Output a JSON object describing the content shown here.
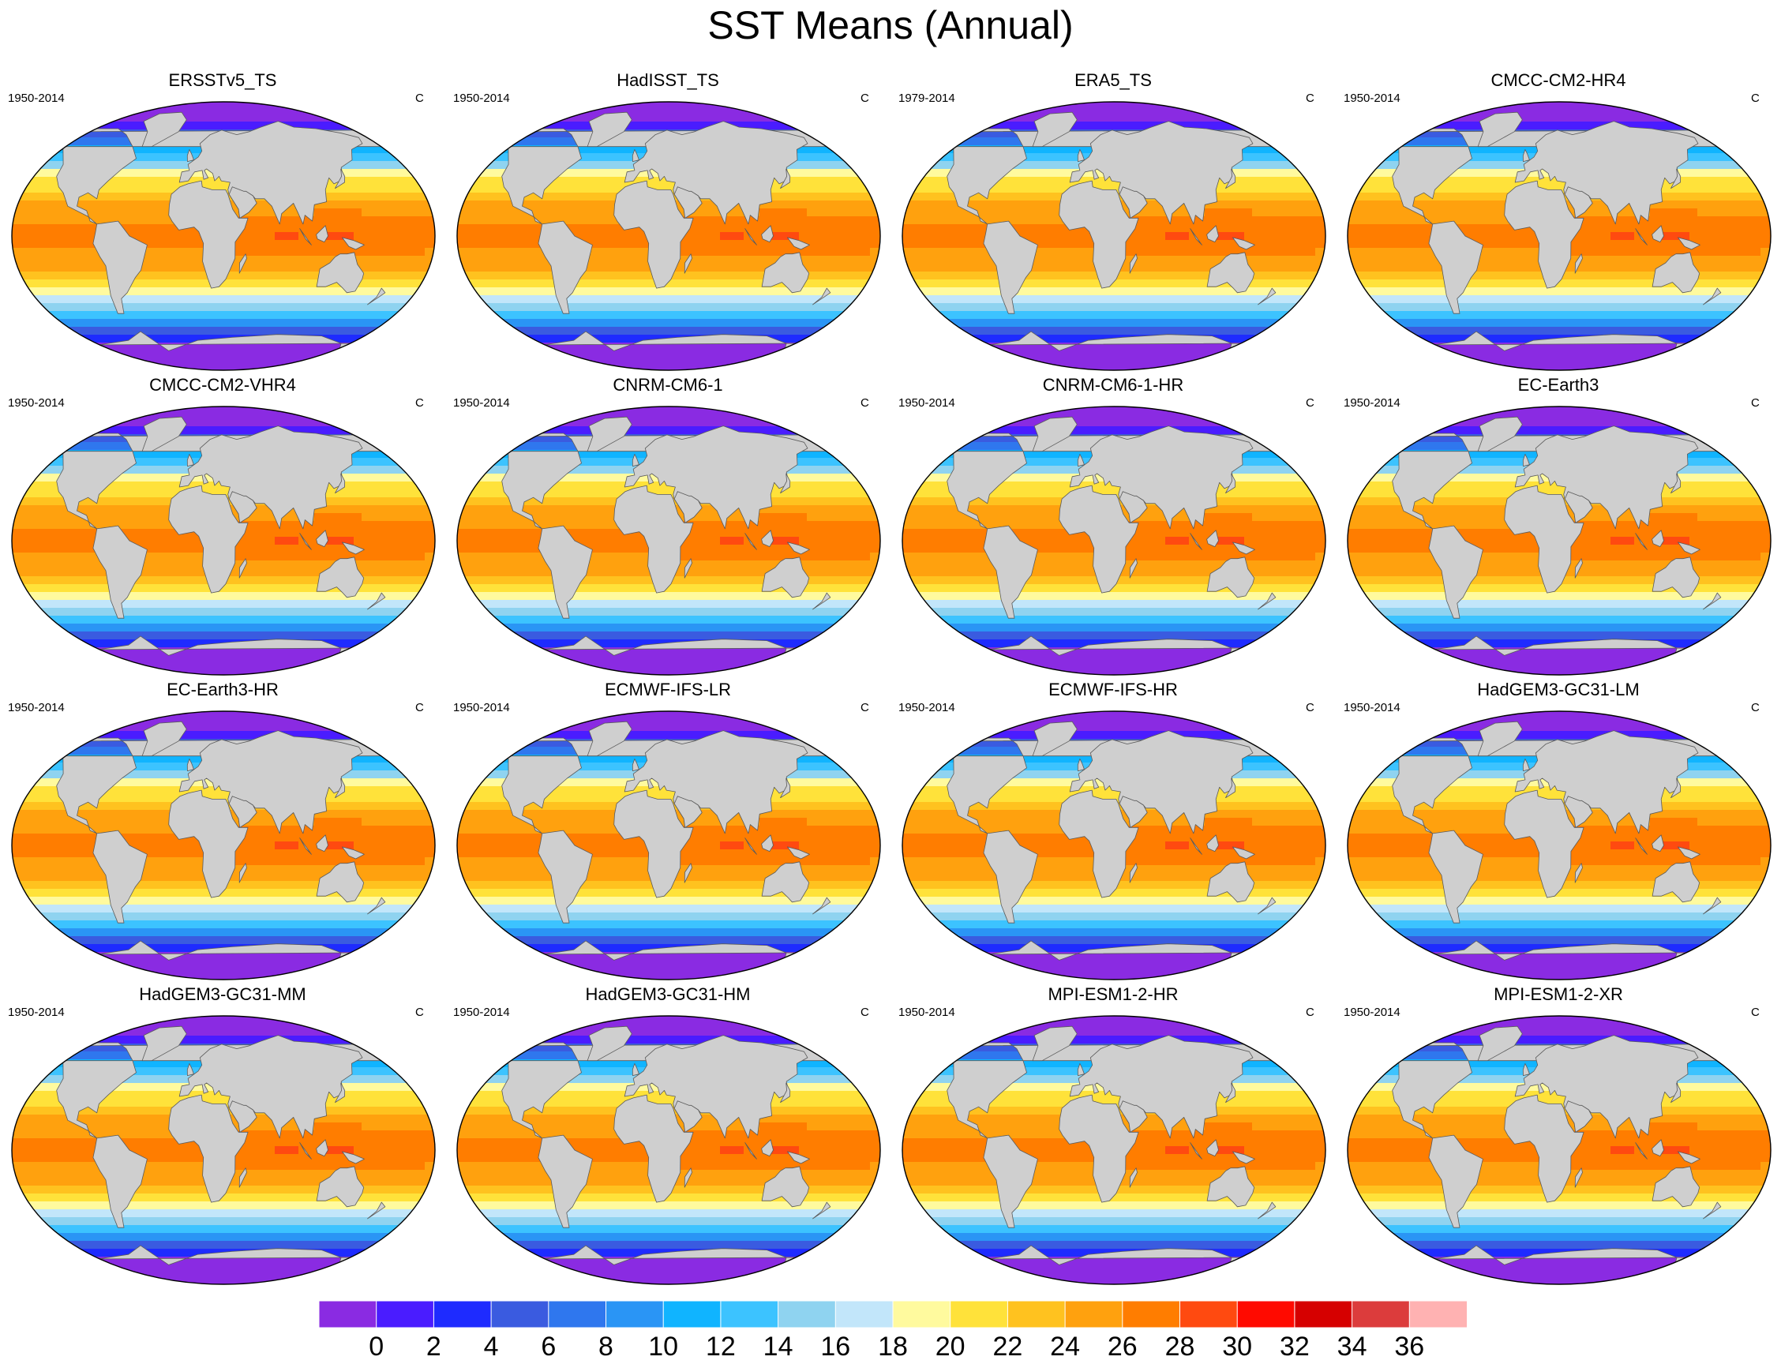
{
  "title": "SST Means (Annual)",
  "colors": {
    "land": "#cfcfcf",
    "coast": "#5a5a5a",
    "levels": [
      "#8a2be2",
      "#4a1cff",
      "#1e2bff",
      "#3a5be0",
      "#2f77ee",
      "#2a95f5",
      "#10b4ff",
      "#3cc3ff",
      "#8fd3f0",
      "#c2e6fa",
      "#fffa9e",
      "#ffe23a",
      "#ffc21f",
      "#ffa10e",
      "#ff7d00",
      "#ff4a10",
      "#ff0a00",
      "#d60000",
      "#dc3c3c",
      "#ffb2b2"
    ]
  },
  "colorbar": {
    "labels": [
      "0",
      "2",
      "4",
      "6",
      "8",
      "10",
      "12",
      "14",
      "16",
      "18",
      "20",
      "22",
      "24",
      "26",
      "28",
      "30",
      "32",
      "34",
      "36"
    ]
  },
  "panels": [
    {
      "title": "ERSSTv5_TS",
      "period": "1950-2014",
      "units": "C"
    },
    {
      "title": "HadISST_TS",
      "period": "1950-2014",
      "units": "C"
    },
    {
      "title": "ERA5_TS",
      "period": "1979-2014",
      "units": "C"
    },
    {
      "title": "CMCC-CM2-HR4",
      "period": "1950-2014",
      "units": "C"
    },
    {
      "title": "CMCC-CM2-VHR4",
      "period": "1950-2014",
      "units": "C"
    },
    {
      "title": "CNRM-CM6-1",
      "period": "1950-2014",
      "units": "C"
    },
    {
      "title": "CNRM-CM6-1-HR",
      "period": "1950-2014",
      "units": "C"
    },
    {
      "title": "EC-Earth3",
      "period": "1950-2014",
      "units": "C"
    },
    {
      "title": "EC-Earth3-HR",
      "period": "1950-2014",
      "units": "C"
    },
    {
      "title": "ECMWF-IFS-LR",
      "period": "1950-2014",
      "units": "C"
    },
    {
      "title": "ECMWF-IFS-HR",
      "period": "1950-2014",
      "units": "C"
    },
    {
      "title": "HadGEM3-GC31-LM",
      "period": "1950-2014",
      "units": "C"
    },
    {
      "title": "HadGEM3-GC31-MM",
      "period": "1950-2014",
      "units": "C"
    },
    {
      "title": "HadGEM3-GC31-HM",
      "period": "1950-2014",
      "units": "C"
    },
    {
      "title": "MPI-ESM1-2-HR",
      "period": "1950-2014",
      "units": "C"
    },
    {
      "title": "MPI-ESM1-2-XR",
      "period": "1950-2014",
      "units": "C"
    }
  ]
}
